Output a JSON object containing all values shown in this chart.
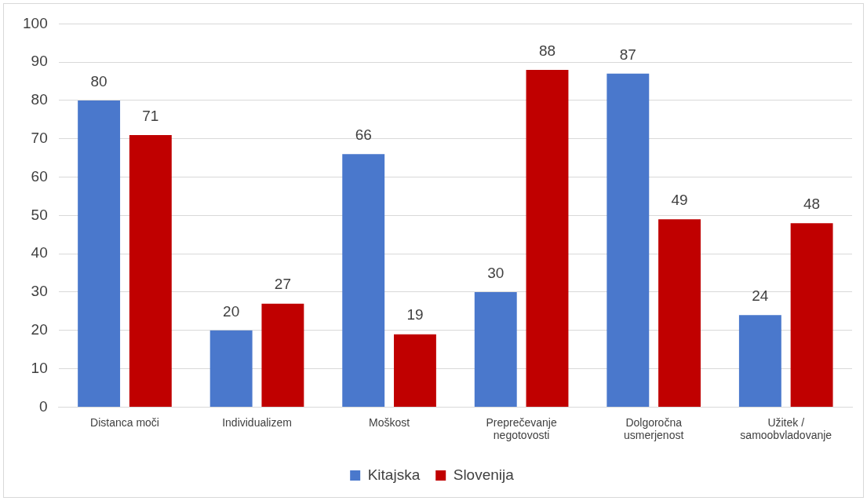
{
  "chart_data": {
    "type": "bar",
    "categories": [
      "Distanca moči",
      "Individualizem",
      "Moškost",
      "Preprečevanje negotovosti",
      "Dolgoročna usmerjenost",
      "Užitek / samoobvladovanje"
    ],
    "series": [
      {
        "name": "Kitajska",
        "color": "#4a78cc",
        "values": [
          80,
          20,
          66,
          30,
          87,
          24
        ]
      },
      {
        "name": "Slovenija",
        "color": "#c00000",
        "values": [
          71,
          27,
          19,
          88,
          49,
          48
        ]
      }
    ],
    "ylim": [
      0,
      100
    ],
    "yticks": [
      0,
      10,
      20,
      30,
      40,
      50,
      60,
      70,
      80,
      90,
      100
    ],
    "grid": "y",
    "legend": "bottom",
    "data_labels": true
  }
}
